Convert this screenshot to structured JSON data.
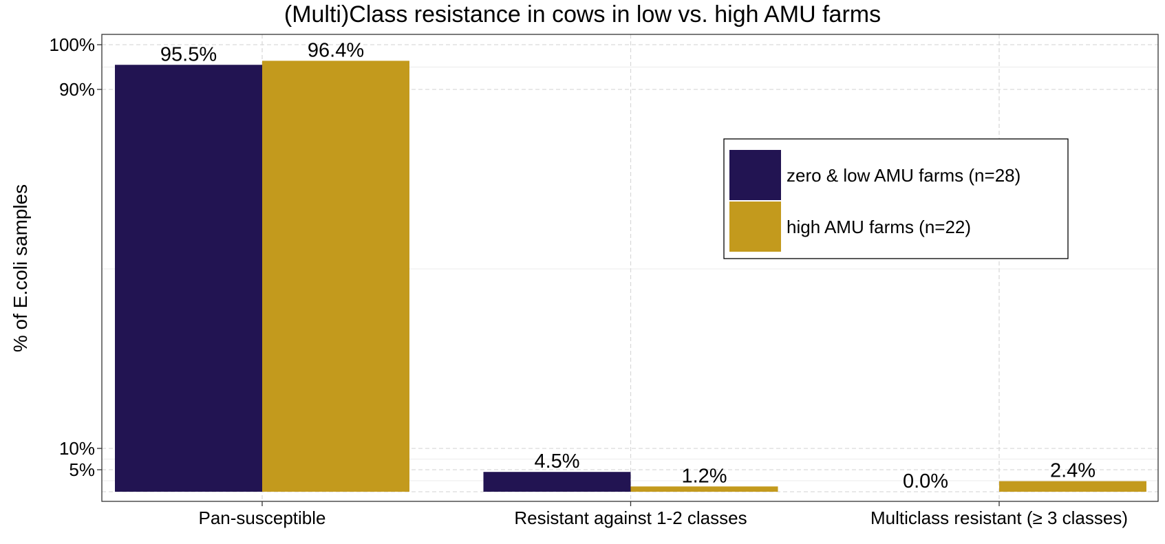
{
  "chart_data": {
    "type": "bar",
    "title": "(Multi)Class resistance in cows in low vs. high AMU farms",
    "xlabel": "",
    "ylabel": "% of E.coli samples",
    "categories": [
      "Pan-susceptible",
      "Resistant against 1-2 classes",
      "Multiclass resistant (≥ 3 classes)"
    ],
    "series": [
      {
        "name": "zero & low AMU farms (n=28)",
        "values": [
          95.5,
          4.5,
          0.0
        ],
        "labels": [
          "95.5%",
          "4.5%",
          "0.0%"
        ],
        "color": "#221452"
      },
      {
        "name": "high AMU farms (n=22)",
        "values": [
          96.4,
          1.2,
          2.4
        ],
        "labels": [
          "96.4%",
          "1.2%",
          "2.4%"
        ],
        "color": "#C39A1D"
      }
    ],
    "y_scale": "logit-like (percent)",
    "ylim": [
      0,
      100
    ],
    "y_ticks": [
      5,
      10,
      90,
      100
    ],
    "y_tick_labels": [
      "5%",
      "10%",
      "90%",
      "100%"
    ],
    "grid": true,
    "legend_position": "right"
  }
}
